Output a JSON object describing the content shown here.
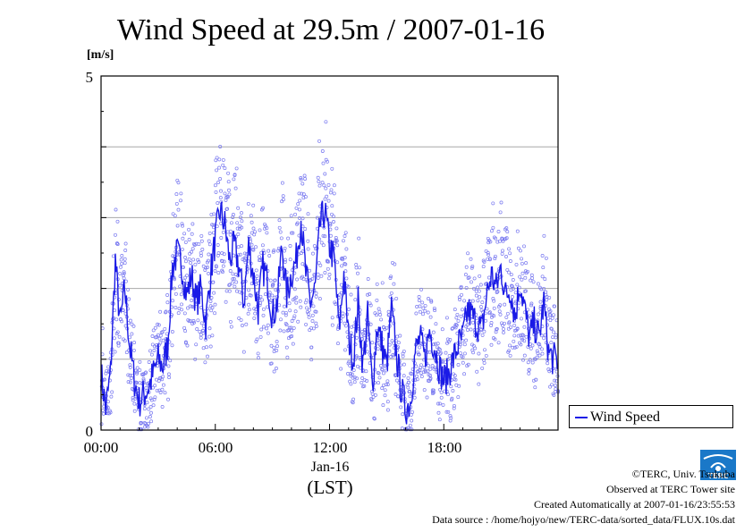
{
  "chart_data": {
    "type": "line",
    "title": "Wind Speed at 29.5m / 2007-01-16",
    "ylabel": "[m/s]",
    "ylim": [
      0,
      5
    ],
    "y_ticks_labeled": [
      "0",
      "5"
    ],
    "grid_y": [
      1,
      2,
      3,
      4
    ],
    "xlim_hours": [
      0,
      24
    ],
    "x_tick_labels": [
      "00:00",
      "06:00",
      "12:00",
      "18:00"
    ],
    "x_date_label": "Jan-16",
    "x_unit_label": "(LST)",
    "legend": {
      "label": "Wind Speed",
      "placement": "right"
    },
    "series_color": "#1a1ae6",
    "scatter_color": "#7a7af0",
    "series": [
      {
        "name": "Wind Speed",
        "x_hours": [
          0.0,
          0.25,
          0.5,
          0.75,
          1.0,
          1.25,
          1.5,
          1.75,
          2.0,
          2.25,
          2.5,
          2.75,
          3.0,
          3.25,
          3.5,
          3.75,
          4.0,
          4.25,
          4.5,
          4.75,
          5.0,
          5.25,
          5.5,
          5.75,
          6.0,
          6.25,
          6.5,
          6.75,
          7.0,
          7.25,
          7.5,
          7.75,
          8.0,
          8.25,
          8.5,
          8.75,
          9.0,
          9.25,
          9.5,
          9.75,
          10.0,
          10.25,
          10.5,
          10.75,
          11.0,
          11.25,
          11.5,
          11.75,
          12.0,
          12.25,
          12.5,
          12.75,
          13.0,
          13.25,
          13.5,
          13.75,
          14.0,
          14.25,
          14.5,
          14.75,
          15.0,
          15.25,
          15.5,
          15.75,
          16.0,
          16.25,
          16.5,
          16.75,
          17.0,
          17.25,
          17.5,
          17.75,
          18.0,
          18.25,
          18.5,
          18.75,
          19.0,
          19.25,
          19.5,
          19.75,
          20.0,
          20.25,
          20.5,
          20.75,
          21.0,
          21.25,
          21.5,
          21.75,
          22.0,
          22.25,
          22.5,
          22.75,
          23.0,
          23.25,
          23.5,
          23.75
        ],
        "values": [
          0.8,
          0.3,
          0.8,
          2.4,
          1.5,
          2.0,
          1.2,
          0.7,
          0.4,
          0.5,
          0.6,
          0.8,
          1.0,
          0.9,
          1.2,
          2.3,
          2.5,
          2.3,
          1.9,
          2.2,
          1.8,
          2.0,
          1.5,
          2.2,
          2.7,
          3.1,
          2.9,
          2.4,
          2.6,
          2.3,
          1.8,
          2.6,
          2.2,
          1.7,
          2.3,
          2.1,
          1.6,
          1.8,
          2.6,
          1.9,
          2.2,
          2.4,
          3.0,
          2.2,
          1.8,
          2.0,
          2.9,
          3.1,
          2.6,
          2.4,
          1.4,
          2.2,
          1.3,
          1.0,
          1.8,
          0.9,
          1.6,
          0.6,
          1.5,
          1.2,
          0.9,
          1.7,
          1.1,
          0.6,
          0.3,
          0.4,
          1.1,
          1.3,
          1.0,
          1.4,
          1.2,
          0.9,
          0.7,
          0.8,
          1.0,
          1.2,
          1.3,
          1.7,
          1.6,
          1.5,
          1.4,
          1.9,
          2.2,
          2.0,
          2.3,
          1.9,
          2.0,
          1.6,
          2.1,
          1.7,
          1.3,
          1.5,
          1.3,
          1.8,
          1.1,
          1.0
        ]
      }
    ]
  },
  "credits": {
    "line1": "©TERC, Univ. Tsukuba",
    "line2": "Observed at TERC Tower site",
    "line3": "Created Automatically at 2007-01-16/23:55:53",
    "line4": "Data source : /home/hojyo/new/TERC-data/sorted_data/FLUX.10s.dat"
  },
  "logo_text": "TERC",
  "logo_color": "#1a78c8"
}
